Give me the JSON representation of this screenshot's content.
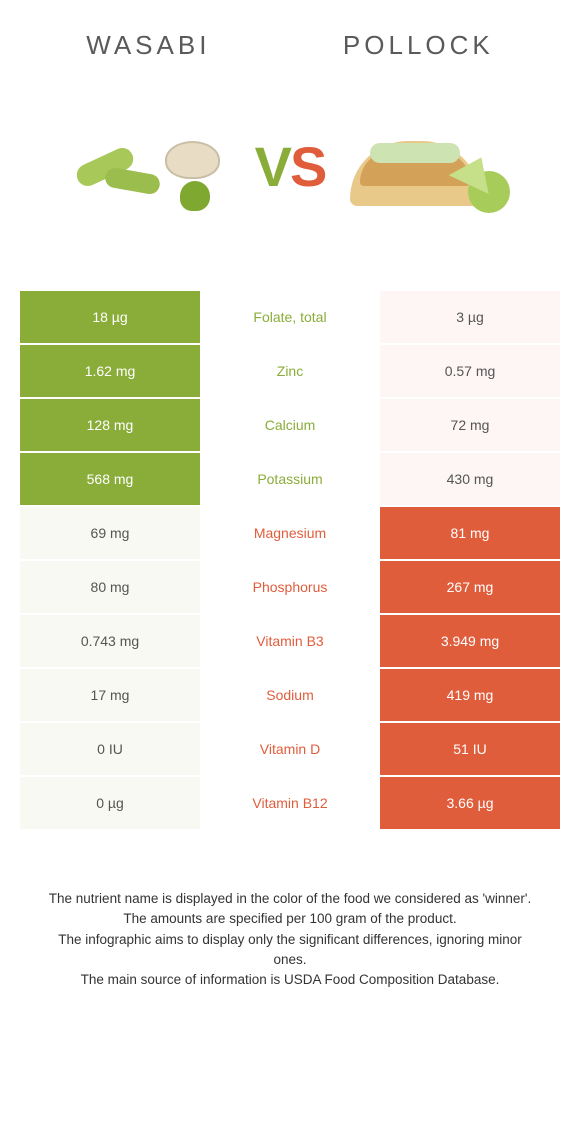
{
  "header": {
    "left_title": "Wasabi",
    "right_title": "Pollock",
    "vs_v": "V",
    "vs_s": "S"
  },
  "colors": {
    "left_win": "#8aad3a",
    "right_win": "#e05d3c",
    "left_lose_bg": "#f7f9f2",
    "right_lose_bg": "#fdf6f4"
  },
  "rows": [
    {
      "left": "18 µg",
      "name": "Folate, total",
      "right": "3 µg",
      "winner": "left"
    },
    {
      "left": "1.62 mg",
      "name": "Zinc",
      "right": "0.57 mg",
      "winner": "left"
    },
    {
      "left": "128 mg",
      "name": "Calcium",
      "right": "72 mg",
      "winner": "left"
    },
    {
      "left": "568 mg",
      "name": "Potassium",
      "right": "430 mg",
      "winner": "left"
    },
    {
      "left": "69 mg",
      "name": "Magnesium",
      "right": "81 mg",
      "winner": "right"
    },
    {
      "left": "80 mg",
      "name": "Phosphorus",
      "right": "267 mg",
      "winner": "right"
    },
    {
      "left": "0.743 mg",
      "name": "Vitamin B3",
      "right": "3.949 mg",
      "winner": "right"
    },
    {
      "left": "17 mg",
      "name": "Sodium",
      "right": "419 mg",
      "winner": "right"
    },
    {
      "left": "0 IU",
      "name": "Vitamin D",
      "right": "51 IU",
      "winner": "right"
    },
    {
      "left": "0 µg",
      "name": "Vitamin B12",
      "right": "3.66 µg",
      "winner": "right"
    }
  ],
  "footer": {
    "line1": "The nutrient name is displayed in the color of the food we considered as 'winner'.",
    "line2": "The amounts are specified per 100 gram of the product.",
    "line3": "The infographic aims to display only the significant differences, ignoring minor ones.",
    "line4": "The main source of information is USDA Food Composition Database."
  }
}
